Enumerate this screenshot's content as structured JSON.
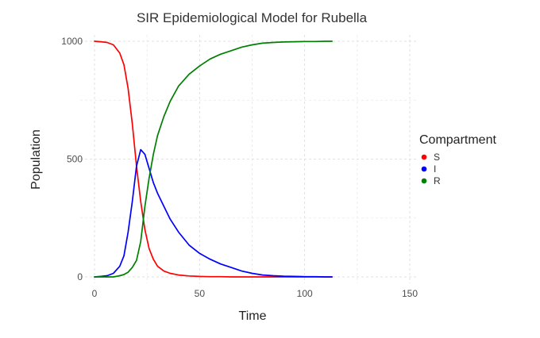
{
  "chart_data": {
    "type": "line",
    "title": "SIR Epidemiological Model for Rubella",
    "xlabel": "Time",
    "ylabel": "Population",
    "xlim": [
      0,
      150
    ],
    "ylim": [
      0,
      1000
    ],
    "xticks": [
      0,
      50,
      100,
      150
    ],
    "yticks": [
      0,
      500,
      1000
    ],
    "grid": true,
    "legend": {
      "title": "Compartment",
      "position": "right"
    },
    "x": [
      0,
      3,
      6,
      9,
      12,
      14,
      16,
      18,
      20,
      22,
      24,
      26,
      28,
      30,
      33,
      36,
      40,
      45,
      50,
      55,
      60,
      65,
      70,
      75,
      80,
      85,
      90,
      95,
      100,
      105,
      110,
      113
    ],
    "series": [
      {
        "name": "S",
        "color": "#ff0000",
        "values": [
          1000,
          998,
          995,
          985,
          950,
          900,
          800,
          650,
          470,
          320,
          200,
          120,
          75,
          45,
          25,
          15,
          8,
          4,
          2,
          1,
          1,
          0,
          0,
          0,
          0,
          0,
          0,
          0,
          0,
          0,
          0,
          0
        ]
      },
      {
        "name": "I",
        "color": "#0000ff",
        "values": [
          0,
          2,
          5,
          15,
          45,
          90,
          190,
          320,
          470,
          540,
          520,
          460,
          400,
          355,
          300,
          245,
          190,
          135,
          100,
          75,
          55,
          40,
          25,
          15,
          8,
          5,
          3,
          2,
          1,
          1,
          0,
          0
        ]
      },
      {
        "name": "R",
        "color": "#008000",
        "values": [
          0,
          0,
          0,
          0,
          5,
          10,
          20,
          40,
          70,
          150,
          300,
          420,
          520,
          600,
          680,
          745,
          810,
          860,
          895,
          925,
          945,
          960,
          975,
          985,
          992,
          995,
          997,
          998,
          999,
          999,
          1000,
          1000
        ]
      }
    ]
  }
}
